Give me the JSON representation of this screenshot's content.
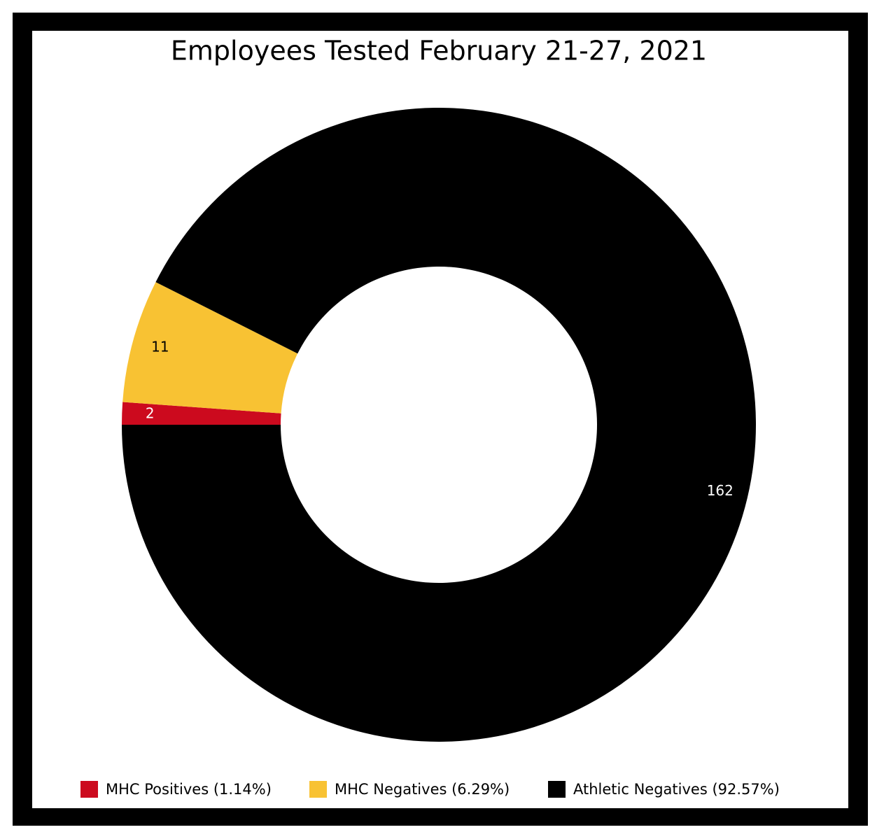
{
  "chart_data": {
    "type": "donut",
    "title": "Employees Tested February 21-27, 2021",
    "categories": [
      "MHC Positives (1.14%)",
      "MHC Negatives (6.29%)",
      "Athletic Negatives (92.57%)"
    ],
    "values": [
      2,
      11,
      162
    ],
    "colors": [
      "#cc0a1e",
      "#f8c233",
      "#000000"
    ]
  }
}
